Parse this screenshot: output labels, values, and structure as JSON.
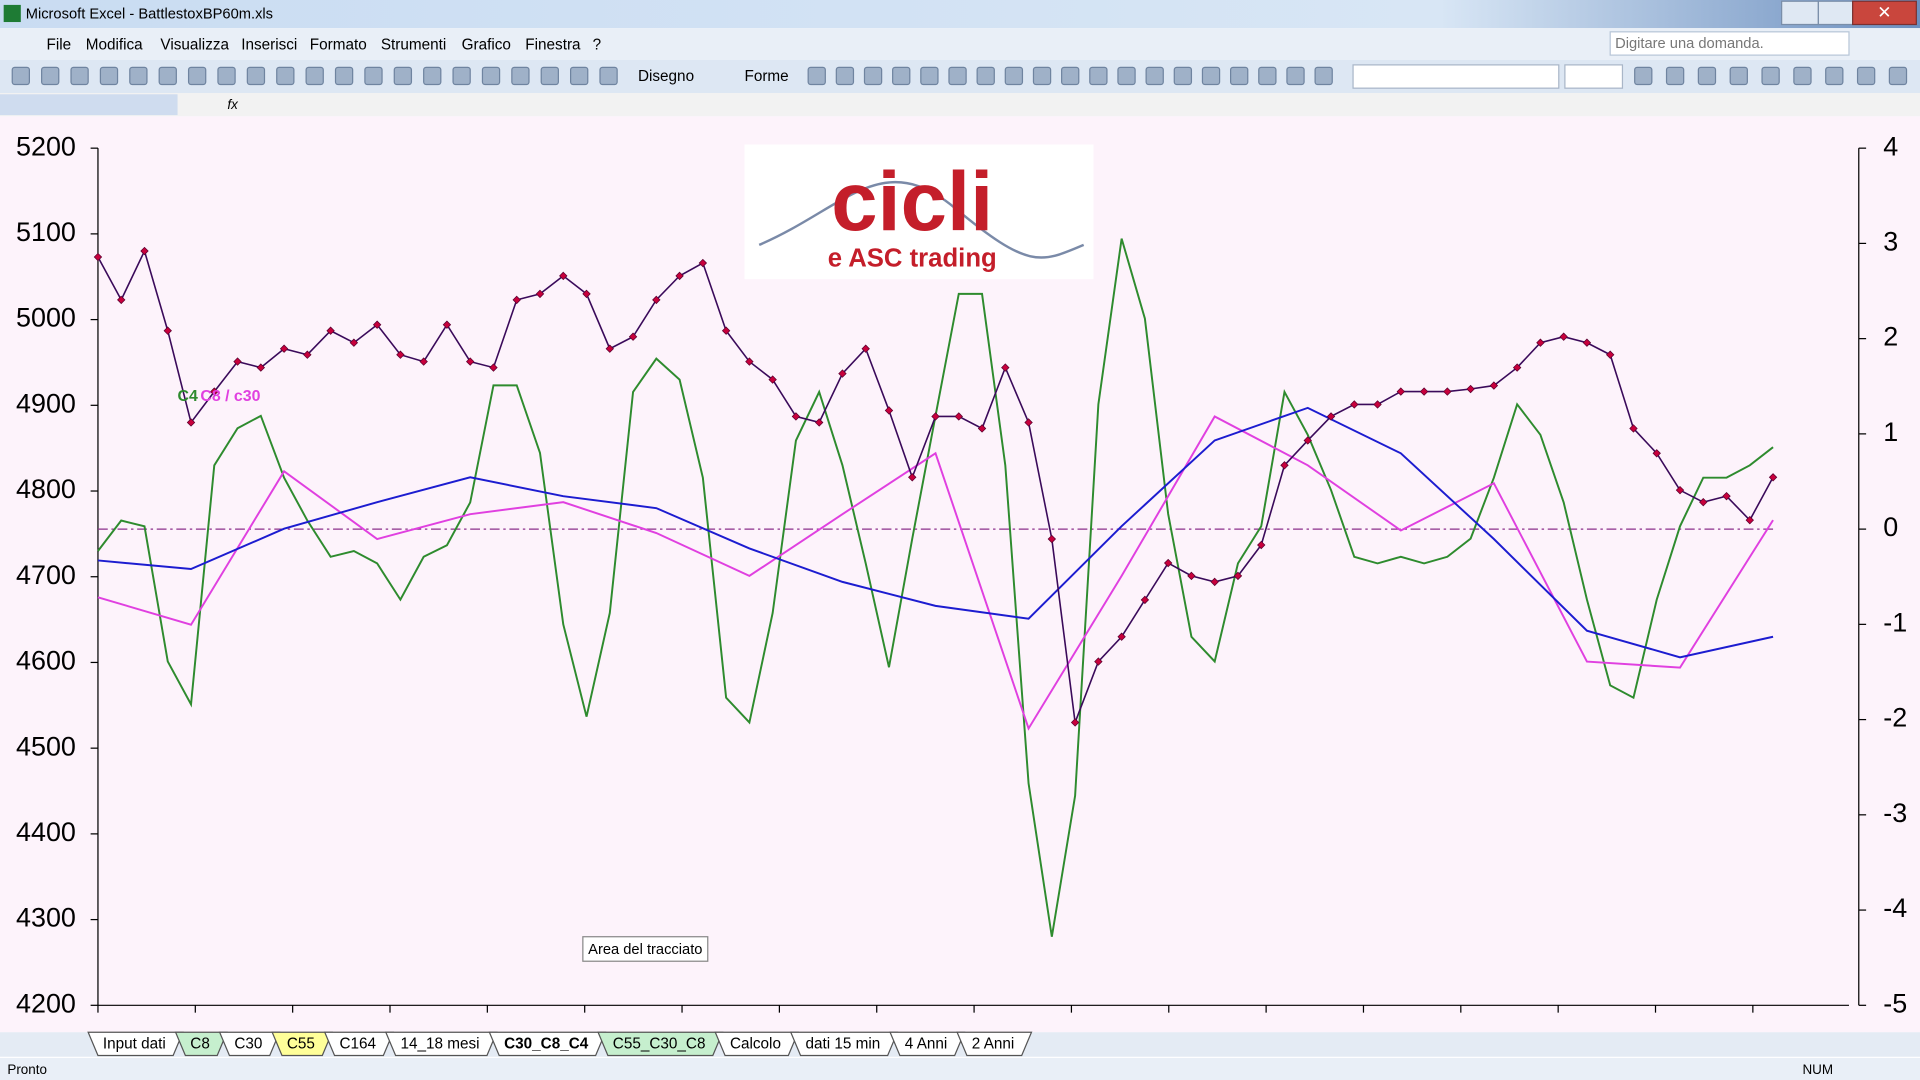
{
  "window": {
    "title": "Microsoft Excel - BattlestoxBP60m.xls"
  },
  "menu": [
    "File",
    "Modifica",
    "Visualizza",
    "Inserisci",
    "Formato",
    "Strumenti",
    "Grafico",
    "Finestra",
    "?"
  ],
  "help_box": "Digitare una domanda.",
  "toolbar": {
    "drawing": "Disegno",
    "shapes": "Forme"
  },
  "formula_bar": {
    "fx": "fx"
  },
  "chart_data": {
    "type": "line",
    "logo": {
      "title": "cicli",
      "subtitle": "e ASC trading"
    },
    "annotation": "Area del tracciato",
    "ylim": [
      4200,
      5200
    ],
    "yticks": [
      4200,
      4300,
      4400,
      4500,
      4600,
      4700,
      4800,
      4900,
      5000,
      5100,
      5200
    ],
    "y2lim": [
      -5,
      4
    ],
    "y2ticks": [
      -5,
      -4,
      -3,
      -2,
      -1,
      0,
      1,
      2,
      3,
      4
    ],
    "reference_line": {
      "axis": "y2",
      "value": 0,
      "color": "#8b2f8b"
    },
    "series": [
      {
        "color": "#3a0a5a",
        "marker_color": "#c8003c",
        "values": [
          5073,
          5023,
          5080,
          4987,
          4880,
          4916,
          4951,
          4944,
          4966,
          4959,
          4987,
          4973,
          4994,
          4959,
          4951,
          4994,
          4951,
          4944,
          5023,
          5030,
          5051,
          5030,
          4966,
          4980,
          5023,
          5051,
          5066,
          4987,
          4951,
          4930,
          4887,
          4880,
          4937,
          4966,
          4894,
          4816,
          4887,
          4887,
          4873,
          4944,
          4880,
          4744,
          4530,
          4601,
          4630,
          4673,
          4716,
          4701,
          4694,
          4701,
          4737,
          4830,
          4859,
          4887,
          4901,
          4901,
          4916,
          4916,
          4916,
          4919,
          4923,
          4944,
          4973,
          4980,
          4973,
          4959,
          4873,
          4844,
          4801,
          4787,
          4794,
          4766,
          4816
        ]
      },
      {
        "color": "#1c1cd0",
        "values": [
          4719,
          4709,
          4756,
          4787,
          4816,
          4794,
          4780,
          4733,
          4694,
          4666,
          4651,
          4759,
          4859,
          4897,
          4844,
          4744,
          4637,
          4606,
          4630
        ]
      },
      {
        "name": "C8 / c30",
        "color": "#e040e0",
        "values": [
          4676,
          4644,
          4823,
          4744,
          4773,
          4787,
          4751,
          4701,
          4773,
          4844,
          4523,
          4701,
          4887,
          4830,
          4754,
          4809,
          4601,
          4594,
          4766
        ]
      },
      {
        "name": "C4",
        "color": "#2e8b2e",
        "axis": "y2",
        "values": [
          -0.23,
          0.09,
          0.03,
          -1.39,
          -1.84,
          0.67,
          1.06,
          1.19,
          0.54,
          0.09,
          -0.29,
          -0.23,
          -0.36,
          -0.74,
          -0.29,
          -0.17,
          0.28,
          1.51,
          1.51,
          0.8,
          -1.0,
          -1.97,
          -0.88,
          1.44,
          1.79,
          1.57,
          0.54,
          -1.77,
          -2.03,
          -0.88,
          0.93,
          1.44,
          0.67,
          -0.36,
          -1.45,
          -0.1,
          1.19,
          2.47,
          2.47,
          0.67,
          -2.67,
          -4.28,
          -2.8,
          1.31,
          3.05,
          2.21,
          0.16,
          -1.13,
          -1.39,
          -0.36,
          0.03,
          1.44,
          0.99,
          0.41,
          -0.29,
          -0.36,
          -0.29,
          -0.36,
          -0.29,
          -0.1,
          0.54,
          1.31,
          0.99,
          0.28,
          -0.74,
          -1.64,
          -1.77,
          -0.74,
          0.03,
          0.54,
          0.54,
          0.67,
          0.86
        ]
      }
    ]
  },
  "sheet_tabs": [
    {
      "label": "Input dati",
      "color": "#ffffff"
    },
    {
      "label": "C8",
      "color": "#c6efce"
    },
    {
      "label": "C30",
      "color": "#ffffff"
    },
    {
      "label": "C55",
      "color": "#ffff99"
    },
    {
      "label": "C164",
      "color": "#ffffff"
    },
    {
      "label": "14_18 mesi",
      "color": "#ffffff"
    },
    {
      "label": "C30_C8_C4",
      "color": "#ffffff",
      "active": true
    },
    {
      "label": "C55_C30_C8",
      "color": "#c6efce"
    },
    {
      "label": "Calcolo",
      "color": "#ffffff"
    },
    {
      "label": "dati 15 min",
      "color": "#ffffff"
    },
    {
      "label": "4 Anni",
      "color": "#ffffff"
    },
    {
      "label": "2 Anni",
      "color": "#ffffff"
    }
  ],
  "status_bar": {
    "left": "Pronto",
    "right": "NUM"
  }
}
